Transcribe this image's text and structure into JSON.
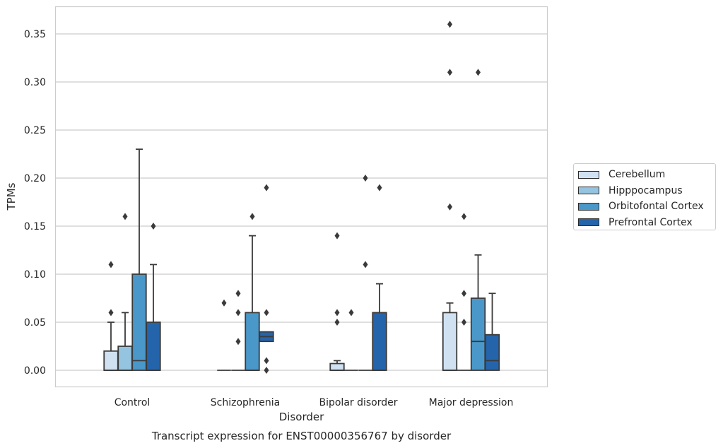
{
  "chart_data": {
    "type": "boxplot",
    "ylabel": "TPMs",
    "xlabel": "Disorder",
    "caption": "Transcript expression for ENST00000356767 by disorder",
    "ylim": [
      -0.018,
      0.38
    ],
    "yticks": [
      "0.00",
      "0.05",
      "0.10",
      "0.15",
      "0.20",
      "0.25",
      "0.30",
      "0.35"
    ],
    "grid": true,
    "legend_position": "right",
    "categories": [
      "Control",
      "Schizophrenia",
      "Bipolar disorder",
      "Major depression"
    ],
    "series": [
      {
        "name": "Cerebellum",
        "color": "#d0e1f2",
        "boxes": [
          {
            "whisker_low": 0,
            "q1": 0,
            "median": 0,
            "q3": 0.02,
            "whisker_high": 0.05,
            "outliers": [
              0.06,
              0.11
            ]
          },
          {
            "whisker_low": 0,
            "q1": 0,
            "median": 0,
            "q3": 0,
            "whisker_high": 0,
            "outliers": [
              0.07
            ]
          },
          {
            "whisker_low": 0,
            "q1": 0,
            "median": 0,
            "q3": 0.007,
            "whisker_high": 0.01,
            "outliers": [
              0.05,
              0.06,
              0.14
            ]
          },
          {
            "whisker_low": 0,
            "q1": 0,
            "median": 0,
            "q3": 0.06,
            "whisker_high": 0.07,
            "outliers": [
              0.17,
              0.31,
              0.36
            ]
          }
        ]
      },
      {
        "name": "Hipppocampus",
        "color": "#94c4df",
        "boxes": [
          {
            "whisker_low": 0,
            "q1": 0,
            "median": 0,
            "q3": 0.025,
            "whisker_high": 0.06,
            "outliers": [
              0.16
            ]
          },
          {
            "whisker_low": 0,
            "q1": 0,
            "median": 0,
            "q3": 0,
            "whisker_high": 0,
            "outliers": [
              0.03,
              0.06,
              0.08
            ]
          },
          {
            "whisker_low": 0,
            "q1": 0,
            "median": 0,
            "q3": 0,
            "whisker_high": 0,
            "outliers": [
              0.06
            ]
          },
          {
            "whisker_low": 0,
            "q1": 0,
            "median": 0,
            "q3": 0,
            "whisker_high": 0,
            "outliers": [
              0.05,
              0.08,
              0.16
            ]
          }
        ]
      },
      {
        "name": "Orbitofontal Cortex",
        "color": "#4a98c9",
        "boxes": [
          {
            "whisker_low": 0,
            "q1": 0,
            "median": 0.01,
            "q3": 0.1,
            "whisker_high": 0.23,
            "outliers": []
          },
          {
            "whisker_low": 0,
            "q1": 0,
            "median": 0,
            "q3": 0.06,
            "whisker_high": 0.14,
            "outliers": [
              0.16
            ]
          },
          {
            "whisker_low": 0,
            "q1": 0,
            "median": 0,
            "q3": 0,
            "whisker_high": 0,
            "outliers": [
              0.11,
              0.2
            ]
          },
          {
            "whisker_low": 0,
            "q1": 0,
            "median": 0.03,
            "q3": 0.075,
            "whisker_high": 0.12,
            "outliers": [
              0.31
            ]
          }
        ]
      },
      {
        "name": "Prefrontal Cortex",
        "color": "#2464ab",
        "boxes": [
          {
            "whisker_low": 0,
            "q1": 0,
            "median": 0,
            "q3": 0.05,
            "whisker_high": 0.11,
            "outliers": [
              0.15
            ]
          },
          {
            "whisker_low": 0.03,
            "q1": 0.03,
            "median": 0.035,
            "q3": 0.04,
            "whisker_high": 0.04,
            "outliers": [
              0,
              0.01,
              0.06,
              0.19
            ]
          },
          {
            "whisker_low": 0,
            "q1": 0,
            "median": 0,
            "q3": 0.06,
            "whisker_high": 0.09,
            "outliers": [
              0.19
            ]
          },
          {
            "whisker_low": 0,
            "q1": 0,
            "median": 0.01,
            "q3": 0.037,
            "whisker_high": 0.08,
            "outliers": []
          }
        ]
      }
    ]
  }
}
